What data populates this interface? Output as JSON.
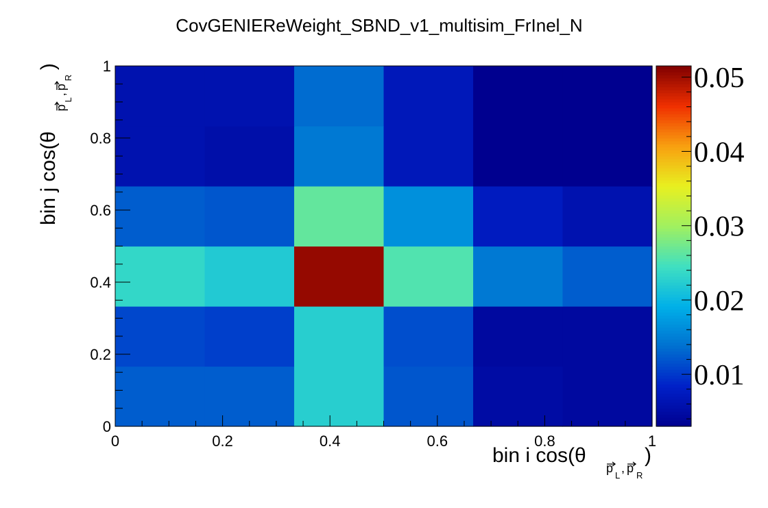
{
  "chart_data": {
    "type": "heatmap",
    "title": "CovGENIEReWeight_SBND_v1_multisim_FrInel_N",
    "xlabel": {
      "main": "bin i cos(θ",
      "sub1": "p",
      "sub1_idx": "L",
      "comma": ",",
      "sub2": "p",
      "sub2_idx": "R",
      "close": ")"
    },
    "ylabel": {
      "main": "bin j cos(θ",
      "sub1": "p",
      "sub1_idx": "L",
      "comma": ",",
      "sub2": "p",
      "sub2_idx": "R",
      "close": ")"
    },
    "xlim": [
      0,
      1
    ],
    "ylim": [
      0,
      1
    ],
    "x_edges": [
      0,
      0.1667,
      0.3333,
      0.5,
      0.6667,
      0.8333,
      1.0
    ],
    "y_edges": [
      0,
      0.1667,
      0.3333,
      0.5,
      0.6667,
      0.8333,
      1.0
    ],
    "x_tick_labels": [
      "0",
      "0.2",
      "0.4",
      "0.6",
      "0.8",
      "1"
    ],
    "x_ticks": [
      0,
      0.2,
      0.4,
      0.6,
      0.8,
      1
    ],
    "y_tick_labels": [
      "0",
      "0.2",
      "0.4",
      "0.6",
      "0.8",
      "1"
    ],
    "y_ticks": [
      0,
      0.2,
      0.4,
      0.6,
      0.8,
      1
    ],
    "z_matrix_rows_bottom_to_top": [
      [
        0.0125,
        0.0125,
        0.0225,
        0.012,
        0.005,
        0.0045
      ],
      [
        0.011,
        0.0105,
        0.0225,
        0.0115,
        0.0045,
        0.0045
      ],
      [
        0.0235,
        0.022,
        0.0505,
        0.0255,
        0.0145,
        0.0125
      ],
      [
        0.0125,
        0.012,
        0.0265,
        0.0165,
        0.0075,
        0.006
      ],
      [
        0.006,
        0.0055,
        0.0145,
        0.007,
        0.003,
        0.003
      ],
      [
        0.006,
        0.006,
        0.0135,
        0.007,
        0.003,
        0.003
      ]
    ],
    "zlim": [
      0.003,
      0.0515
    ],
    "colorbar_tick_labels": [
      "0.01",
      "0.02",
      "0.03",
      "0.04",
      "0.05"
    ],
    "colorbar_ticks": [
      0.01,
      0.02,
      0.03,
      0.04,
      0.05
    ],
    "colormap": [
      "#00008f",
      "#0020c8",
      "#0070d0",
      "#00b0e8",
      "#40e0c0",
      "#a0f060",
      "#e8f020",
      "#f8a010",
      "#f03000",
      "#800000"
    ]
  }
}
